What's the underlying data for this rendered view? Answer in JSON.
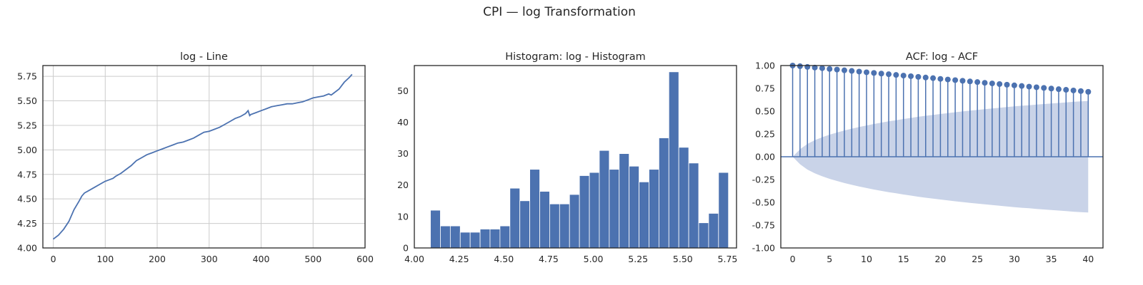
{
  "figure": {
    "title": "CPI — log Transformation"
  },
  "colors": {
    "series": "#4c72b0",
    "band": "#c9d3e8",
    "grid": "#cccccc",
    "frame": "#262626"
  },
  "chart_data": [
    {
      "type": "line",
      "title": "log - Line",
      "xlim": [
        -20,
        600
      ],
      "ylim": [
        4.0,
        5.86
      ],
      "xticks": [
        0,
        100,
        200,
        300,
        400,
        500,
        600
      ],
      "yticks": [
        4.0,
        4.25,
        4.5,
        4.75,
        5.0,
        5.25,
        5.5,
        5.75
      ],
      "grid": true,
      "x": [
        0,
        10,
        20,
        30,
        40,
        50,
        55,
        60,
        70,
        80,
        90,
        100,
        110,
        115,
        120,
        130,
        140,
        150,
        160,
        170,
        180,
        190,
        200,
        210,
        220,
        230,
        240,
        250,
        260,
        270,
        280,
        290,
        300,
        310,
        320,
        330,
        340,
        350,
        360,
        370,
        375,
        378,
        380,
        390,
        400,
        410,
        420,
        430,
        440,
        450,
        460,
        470,
        480,
        490,
        500,
        510,
        520,
        530,
        535,
        540,
        550,
        560,
        570,
        575
      ],
      "y": [
        4.09,
        4.13,
        4.19,
        4.27,
        4.39,
        4.48,
        4.53,
        4.56,
        4.59,
        4.62,
        4.65,
        4.68,
        4.7,
        4.71,
        4.73,
        4.76,
        4.8,
        4.84,
        4.89,
        4.92,
        4.95,
        4.97,
        4.99,
        5.01,
        5.03,
        5.05,
        5.07,
        5.08,
        5.1,
        5.12,
        5.15,
        5.18,
        5.19,
        5.21,
        5.23,
        5.26,
        5.29,
        5.32,
        5.34,
        5.37,
        5.4,
        5.35,
        5.36,
        5.38,
        5.4,
        5.42,
        5.44,
        5.45,
        5.46,
        5.47,
        5.47,
        5.48,
        5.49,
        5.51,
        5.53,
        5.54,
        5.55,
        5.57,
        5.56,
        5.58,
        5.62,
        5.69,
        5.74,
        5.77
      ]
    },
    {
      "type": "bar",
      "title": "Histogram: log - Histogram",
      "xlim": [
        4.0,
        5.8
      ],
      "ylim": [
        0,
        58
      ],
      "xticks": [
        4.0,
        4.25,
        4.5,
        4.75,
        5.0,
        5.25,
        5.5,
        5.75
      ],
      "yticks": [
        0,
        10,
        20,
        30,
        40,
        50
      ],
      "grid": false,
      "bin_start": 4.09,
      "bin_width": 0.0555,
      "values": [
        12,
        7,
        7,
        5,
        5,
        6,
        6,
        7,
        19,
        15,
        25,
        18,
        14,
        14,
        17,
        23,
        24,
        31,
        25,
        30,
        26,
        21,
        25,
        35,
        56,
        32,
        27,
        8,
        11,
        24
      ]
    },
    {
      "type": "stem",
      "title": "ACF: log - ACF",
      "xlim": [
        -1.6,
        42
      ],
      "ylim": [
        -1.0,
        1.0
      ],
      "xticks": [
        0,
        5,
        10,
        15,
        20,
        25,
        30,
        35,
        40
      ],
      "yticks": [
        -1.0,
        -0.75,
        -0.5,
        -0.25,
        0.0,
        0.25,
        0.5,
        0.75,
        1.0
      ],
      "grid": false,
      "lags": [
        0,
        1,
        2,
        3,
        4,
        5,
        6,
        7,
        8,
        9,
        10,
        11,
        12,
        13,
        14,
        15,
        16,
        17,
        18,
        19,
        20,
        21,
        22,
        23,
        24,
        25,
        26,
        27,
        28,
        29,
        30,
        31,
        32,
        33,
        34,
        35,
        36,
        37,
        38,
        39,
        40
      ],
      "values": [
        1.0,
        0.993,
        0.985,
        0.978,
        0.971,
        0.963,
        0.956,
        0.948,
        0.941,
        0.934,
        0.926,
        0.919,
        0.912,
        0.905,
        0.897,
        0.89,
        0.883,
        0.876,
        0.869,
        0.862,
        0.854,
        0.847,
        0.84,
        0.833,
        0.826,
        0.819,
        0.811,
        0.804,
        0.797,
        0.79,
        0.783,
        0.776,
        0.769,
        0.762,
        0.755,
        0.748,
        0.741,
        0.734,
        0.727,
        0.72,
        0.712
      ],
      "confint_upper": [
        0.0,
        0.082,
        0.141,
        0.182,
        0.214,
        0.242,
        0.266,
        0.288,
        0.308,
        0.326,
        0.343,
        0.359,
        0.374,
        0.388,
        0.401,
        0.414,
        0.426,
        0.438,
        0.449,
        0.459,
        0.469,
        0.479,
        0.488,
        0.497,
        0.506,
        0.514,
        0.522,
        0.53,
        0.537,
        0.545,
        0.552,
        0.559,
        0.565,
        0.572,
        0.578,
        0.584,
        0.59,
        0.596,
        0.602,
        0.607,
        0.612
      ]
    }
  ]
}
